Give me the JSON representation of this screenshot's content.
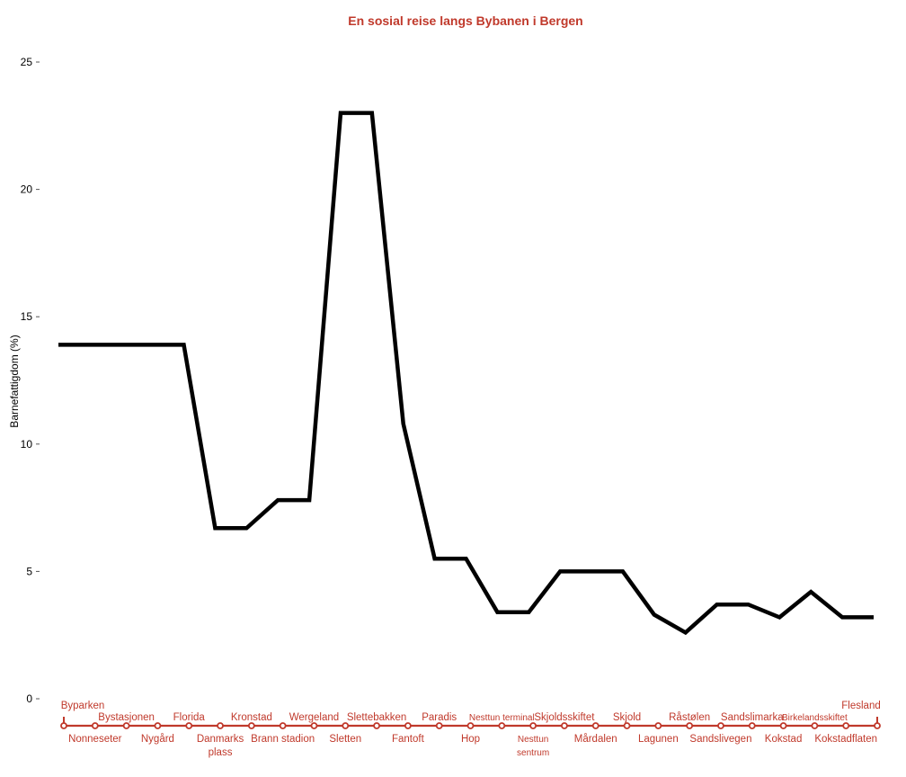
{
  "chart_data": {
    "type": "line",
    "title": "En sosial reise langs Bybanen i Bergen",
    "ylabel": "Barnefattigdom (%)",
    "xlabel": "",
    "ylim": [
      0,
      25
    ],
    "yticks": [
      "0",
      "5",
      "10",
      "15",
      "20",
      "25"
    ],
    "grid": false,
    "categories": [
      "Byparken",
      "Nonneseter",
      "Bystasjonen",
      "Nygård",
      "Florida",
      "Danmarks plass",
      "Kronstad",
      "Brann stadion",
      "Wergeland",
      "Sletten",
      "Slettebakken",
      "Fantoft",
      "Paradis",
      "Hop",
      "Nesttun terminal",
      "Nesttun sentrum",
      "Skjoldsskiftet",
      "Mårdalen",
      "Skjold",
      "Lagunen",
      "Råstølen",
      "Sandslivegen",
      "Sandslimarka",
      "Kokstad",
      "Birkelandsskiftet",
      "Kokstadflaten",
      "Flesland"
    ],
    "series": [
      {
        "values": [
          13.9,
          13.9,
          13.9,
          13.9,
          13.9,
          6.7,
          6.7,
          7.8,
          7.8,
          23.0,
          23.0,
          10.8,
          5.5,
          5.5,
          3.4,
          3.4,
          5.0,
          5.0,
          5.0,
          3.3,
          2.6,
          3.7,
          3.7,
          3.2,
          4.2,
          3.2,
          3.2
        ]
      }
    ],
    "colors": {
      "line": "#000000",
      "title": "#c0392b",
      "metro": "#c0392b"
    }
  }
}
